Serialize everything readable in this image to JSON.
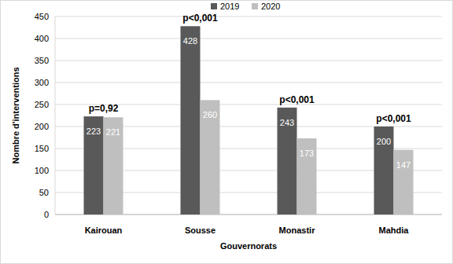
{
  "chart_data": {
    "type": "bar",
    "x_label": "Gouvernorats",
    "y_label": "Nombre d'interventions",
    "categories": [
      "Kairouan",
      "Sousse",
      "Monastir",
      "Mahdia"
    ],
    "series": [
      {
        "name": "2019",
        "color": "#595959",
        "values": [
          223,
          428,
          243,
          200
        ]
      },
      {
        "name": "2020",
        "color": "#bfbfbf",
        "values": [
          221,
          260,
          173,
          147
        ]
      }
    ],
    "annotations": [
      "p=0,92",
      "p<0,001",
      "p<0,001",
      "p<0,001"
    ],
    "ylim": [
      0,
      450
    ],
    "yticks": [
      0,
      50,
      100,
      150,
      200,
      250,
      300,
      350,
      400,
      450
    ],
    "grid": true,
    "legend": "top",
    "data_labels": true
  }
}
